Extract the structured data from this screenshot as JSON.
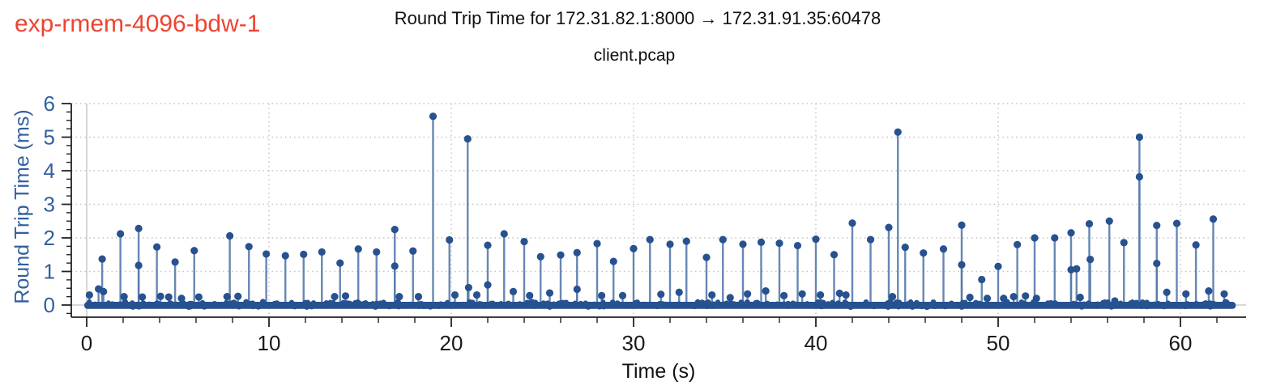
{
  "annotation": {
    "label": "exp-rmem-4096-bdw-1",
    "color": "#ed4431"
  },
  "header": {
    "title": "Round Trip Time for 172.31.82.1:8000 → 172.31.91.35:60478",
    "subtitle": "client.pcap"
  },
  "chart_data": {
    "type": "scatter",
    "title": "Round Trip Time for 172.31.82.1:8000 → 172.31.91.35:60478",
    "subtitle": "client.pcap",
    "xlabel": "Time (s)",
    "ylabel": "Round Trip Time (ms)",
    "xlim": [
      -0.85,
      63.7
    ],
    "ylim": [
      -0.36,
      6.0
    ],
    "x_major_ticks": [
      0,
      10,
      20,
      30,
      40,
      50,
      60
    ],
    "x_minor_step": 2,
    "y_major_ticks": [
      0,
      1,
      2,
      3,
      4,
      5,
      6
    ],
    "y_minor_step": 0.25,
    "grid": "dotted gridlines at major ticks; solid light lines at x=0 and y=0",
    "legend": "none",
    "colors": {
      "dot": "#27518f",
      "stem": "#567bac",
      "y_text": "#315f9f",
      "x_text": "#1a1a1a",
      "grid_dotted": "#c3c3c3",
      "zero_line": "#cccccc",
      "spine": "#222222",
      "annotation": "#ed4431"
    },
    "points": [
      [
        0.15,
        0.3
      ],
      [
        0.65,
        0.48
      ],
      [
        0.85,
        1.37
      ],
      [
        0.92,
        0.4
      ],
      [
        1.85,
        2.12
      ],
      [
        2.05,
        0.25
      ],
      [
        2.85,
        2.28
      ],
      [
        2.85,
        1.18
      ],
      [
        3.05,
        0.24
      ],
      [
        3.85,
        1.73
      ],
      [
        4.05,
        0.26
      ],
      [
        4.5,
        0.24
      ],
      [
        4.85,
        1.28
      ],
      [
        5.2,
        0.2
      ],
      [
        5.9,
        1.62
      ],
      [
        6.15,
        0.24
      ],
      [
        7.7,
        0.25
      ],
      [
        7.85,
        2.06
      ],
      [
        8.3,
        0.26
      ],
      [
        8.9,
        1.74
      ],
      [
        9.85,
        1.52
      ],
      [
        10.9,
        1.47
      ],
      [
        11.9,
        1.51
      ],
      [
        12.9,
        1.58
      ],
      [
        13.6,
        0.25
      ],
      [
        13.9,
        1.25
      ],
      [
        14.2,
        0.27
      ],
      [
        14.9,
        1.67
      ],
      [
        15.9,
        1.58
      ],
      [
        16.9,
        2.25
      ],
      [
        16.9,
        1.16
      ],
      [
        17.15,
        0.25
      ],
      [
        17.9,
        1.61
      ],
      [
        18.2,
        0.25
      ],
      [
        19.0,
        5.62
      ],
      [
        19.9,
        1.94
      ],
      [
        20.2,
        0.3
      ],
      [
        20.9,
        4.95
      ],
      [
        20.95,
        0.52
      ],
      [
        21.4,
        0.3
      ],
      [
        22.0,
        1.78
      ],
      [
        22.0,
        0.6
      ],
      [
        22.9,
        2.12
      ],
      [
        23.4,
        0.4
      ],
      [
        24.0,
        1.89
      ],
      [
        24.3,
        0.28
      ],
      [
        24.9,
        1.44
      ],
      [
        25.4,
        0.36
      ],
      [
        26.0,
        1.49
      ],
      [
        26.9,
        1.56
      ],
      [
        26.9,
        0.47
      ],
      [
        28.0,
        1.83
      ],
      [
        28.25,
        0.28
      ],
      [
        28.9,
        1.3
      ],
      [
        29.4,
        0.28
      ],
      [
        30.0,
        1.68
      ],
      [
        30.9,
        1.95
      ],
      [
        31.5,
        0.32
      ],
      [
        32.0,
        1.81
      ],
      [
        32.5,
        0.38
      ],
      [
        32.9,
        1.9
      ],
      [
        34.0,
        1.42
      ],
      [
        34.3,
        0.3
      ],
      [
        34.9,
        1.95
      ],
      [
        35.3,
        0.22
      ],
      [
        36.0,
        1.81
      ],
      [
        36.25,
        0.33
      ],
      [
        37.0,
        1.87
      ],
      [
        37.25,
        0.42
      ],
      [
        38.0,
        1.84
      ],
      [
        38.25,
        0.28
      ],
      [
        39.0,
        1.77
      ],
      [
        39.25,
        0.33
      ],
      [
        40.0,
        1.96
      ],
      [
        40.25,
        0.3
      ],
      [
        41.0,
        1.5
      ],
      [
        41.3,
        0.35
      ],
      [
        41.65,
        0.3
      ],
      [
        42.0,
        2.44
      ],
      [
        43.0,
        1.95
      ],
      [
        44.0,
        2.31
      ],
      [
        44.2,
        0.25
      ],
      [
        44.5,
        5.15
      ],
      [
        44.9,
        1.72
      ],
      [
        45.9,
        1.55
      ],
      [
        47.0,
        1.67
      ],
      [
        48.0,
        2.38
      ],
      [
        48.0,
        1.2
      ],
      [
        48.45,
        0.23
      ],
      [
        49.1,
        0.76
      ],
      [
        49.4,
        0.2
      ],
      [
        50.0,
        1.15
      ],
      [
        50.3,
        0.2
      ],
      [
        50.85,
        0.25
      ],
      [
        51.05,
        1.8
      ],
      [
        51.5,
        0.27
      ],
      [
        52.0,
        2.0
      ],
      [
        52.1,
        0.2
      ],
      [
        53.1,
        2.0
      ],
      [
        54.0,
        2.15
      ],
      [
        54.0,
        1.05
      ],
      [
        54.3,
        1.08
      ],
      [
        54.5,
        0.23
      ],
      [
        55.0,
        2.42
      ],
      [
        55.05,
        1.36
      ],
      [
        56.1,
        2.5
      ],
      [
        56.4,
        0.12
      ],
      [
        56.9,
        1.86
      ],
      [
        57.75,
        5.0
      ],
      [
        57.75,
        3.82
      ],
      [
        58.7,
        2.37
      ],
      [
        58.7,
        1.24
      ],
      [
        59.25,
        0.38
      ],
      [
        59.8,
        2.43
      ],
      [
        60.3,
        0.33
      ],
      [
        60.85,
        1.79
      ],
      [
        61.55,
        0.42
      ],
      [
        61.8,
        2.56
      ],
      [
        62.4,
        0.33
      ]
    ],
    "baseline": {
      "t_range": [
        0,
        62.9
      ],
      "rtt_range": [
        0,
        0.12
      ],
      "description": "dense band of samples near 0 ms across the whole capture"
    }
  },
  "axes": {
    "x_tick_labels": [
      "0",
      "10",
      "20",
      "30",
      "40",
      "50",
      "60"
    ],
    "y_tick_labels": [
      "0",
      "1",
      "2",
      "3",
      "4",
      "5",
      "6"
    ]
  }
}
